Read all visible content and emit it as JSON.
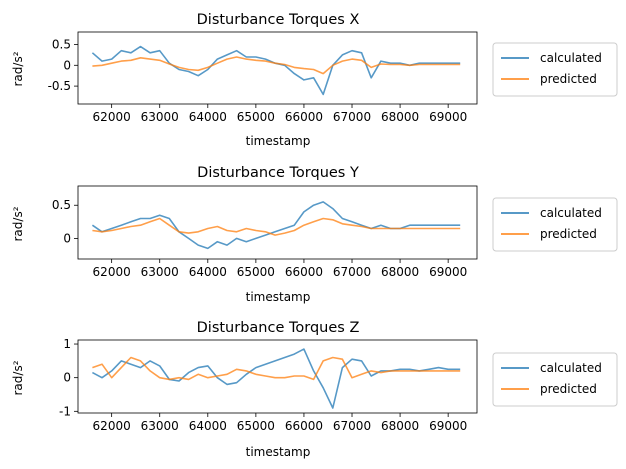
{
  "colors": {
    "calculated": "#1f77b4",
    "predicted": "#ff7f0e"
  },
  "chart_data": [
    {
      "type": "line",
      "title": "Disturbance Torques X",
      "xlabel": "timestamp",
      "ylabel": "rad/s²",
      "xlim": [
        61300,
        69600
      ],
      "ylim": [
        -0.93,
        0.8
      ],
      "x_ticks": [
        62000,
        63000,
        64000,
        65000,
        66000,
        67000,
        68000,
        69000
      ],
      "y_ticks": [
        -0.5,
        0.0,
        0.5
      ],
      "legend": {
        "position": "right",
        "entries": [
          "calculated",
          "predicted"
        ]
      },
      "x": [
        61600,
        61800,
        62000,
        62200,
        62400,
        62600,
        62800,
        63000,
        63200,
        63400,
        63600,
        63800,
        64000,
        64200,
        64400,
        64600,
        64800,
        65000,
        65200,
        65400,
        65600,
        65800,
        66000,
        66200,
        66400,
        66600,
        66800,
        67000,
        67200,
        67400,
        67600,
        67800,
        68000,
        68200,
        68400,
        68600,
        68800,
        69000,
        69250
      ],
      "series": [
        {
          "name": "calculated",
          "values": [
            0.3,
            0.1,
            0.15,
            0.35,
            0.3,
            0.45,
            0.3,
            0.35,
            0.05,
            -0.1,
            -0.15,
            -0.25,
            -0.1,
            0.15,
            0.25,
            0.35,
            0.2,
            0.2,
            0.15,
            0.05,
            0.0,
            -0.2,
            -0.35,
            -0.3,
            -0.7,
            0.0,
            0.25,
            0.35,
            0.3,
            -0.3,
            0.1,
            0.05,
            0.05,
            0.0,
            0.05,
            0.05,
            0.05,
            0.05,
            0.05
          ]
        },
        {
          "name": "predicted",
          "values": [
            -0.02,
            0.0,
            0.05,
            0.1,
            0.12,
            0.18,
            0.15,
            0.12,
            0.03,
            -0.05,
            -0.1,
            -0.12,
            -0.05,
            0.05,
            0.15,
            0.2,
            0.15,
            0.12,
            0.1,
            0.05,
            0.02,
            -0.05,
            -0.08,
            -0.1,
            -0.2,
            0.0,
            0.1,
            0.15,
            0.12,
            -0.05,
            0.03,
            0.02,
            0.02,
            0.0,
            0.02,
            0.02,
            0.02,
            0.02,
            0.02
          ]
        }
      ]
    },
    {
      "type": "line",
      "title": "Disturbance Torques Y",
      "xlabel": "timestamp",
      "ylabel": "rad/s²",
      "xlim": [
        61300,
        69600
      ],
      "ylim": [
        -0.31,
        0.79
      ],
      "x_ticks": [
        62000,
        63000,
        64000,
        65000,
        66000,
        67000,
        68000,
        69000
      ],
      "y_ticks": [
        0.0,
        0.5
      ],
      "legend": {
        "position": "right",
        "entries": [
          "calculated",
          "predicted"
        ]
      },
      "x": [
        61600,
        61800,
        62000,
        62200,
        62400,
        62600,
        62800,
        63000,
        63200,
        63400,
        63600,
        63800,
        64000,
        64200,
        64400,
        64600,
        64800,
        65000,
        65200,
        65400,
        65600,
        65800,
        66000,
        66200,
        66400,
        66600,
        66800,
        67000,
        67200,
        67400,
        67600,
        67800,
        68000,
        68200,
        68400,
        68600,
        68800,
        69000,
        69250
      ],
      "series": [
        {
          "name": "calculated",
          "values": [
            0.2,
            0.1,
            0.15,
            0.2,
            0.25,
            0.3,
            0.3,
            0.35,
            0.3,
            0.1,
            0.0,
            -0.1,
            -0.15,
            -0.05,
            -0.1,
            0.0,
            -0.05,
            0.0,
            0.05,
            0.1,
            0.15,
            0.2,
            0.4,
            0.5,
            0.55,
            0.45,
            0.3,
            0.25,
            0.2,
            0.15,
            0.2,
            0.15,
            0.15,
            0.2,
            0.2,
            0.2,
            0.2,
            0.2,
            0.2
          ]
        },
        {
          "name": "predicted",
          "values": [
            0.12,
            0.1,
            0.12,
            0.15,
            0.18,
            0.2,
            0.25,
            0.3,
            0.2,
            0.1,
            0.08,
            0.1,
            0.15,
            0.18,
            0.12,
            0.1,
            0.15,
            0.12,
            0.1,
            0.05,
            0.08,
            0.12,
            0.2,
            0.25,
            0.3,
            0.28,
            0.22,
            0.2,
            0.18,
            0.15,
            0.15,
            0.15,
            0.15,
            0.15,
            0.15,
            0.15,
            0.15,
            0.15,
            0.15
          ]
        }
      ]
    },
    {
      "type": "line",
      "title": "Disturbance Torques Z",
      "xlabel": "timestamp",
      "ylabel": "rad/s²",
      "xlim": [
        61300,
        69600
      ],
      "ylim": [
        -1.05,
        1.12
      ],
      "x_ticks": [
        62000,
        63000,
        64000,
        65000,
        66000,
        67000,
        68000,
        69000
      ],
      "y_ticks": [
        -1,
        0,
        1
      ],
      "legend": {
        "position": "right",
        "entries": [
          "calculated",
          "predicted"
        ]
      },
      "x": [
        61600,
        61800,
        62000,
        62200,
        62400,
        62600,
        62800,
        63000,
        63200,
        63400,
        63600,
        63800,
        64000,
        64200,
        64400,
        64600,
        64800,
        65000,
        65200,
        65400,
        65600,
        65800,
        66000,
        66200,
        66400,
        66600,
        66800,
        67000,
        67200,
        67400,
        67600,
        67800,
        68000,
        68200,
        68400,
        68600,
        68800,
        69000,
        69250
      ],
      "series": [
        {
          "name": "calculated",
          "values": [
            0.15,
            0.0,
            0.2,
            0.5,
            0.4,
            0.3,
            0.5,
            0.35,
            -0.05,
            -0.1,
            0.15,
            0.3,
            0.35,
            0.0,
            -0.2,
            -0.15,
            0.1,
            0.3,
            0.4,
            0.5,
            0.6,
            0.7,
            0.85,
            0.2,
            -0.3,
            -0.9,
            0.3,
            0.55,
            0.5,
            0.05,
            0.2,
            0.2,
            0.25,
            0.25,
            0.2,
            0.25,
            0.3,
            0.25,
            0.25
          ]
        },
        {
          "name": "predicted",
          "values": [
            0.3,
            0.4,
            0.0,
            0.3,
            0.6,
            0.5,
            0.2,
            0.0,
            -0.05,
            0.0,
            -0.05,
            0.1,
            0.0,
            0.05,
            0.1,
            0.25,
            0.2,
            0.1,
            0.05,
            0.0,
            0.0,
            0.05,
            0.05,
            -0.05,
            0.5,
            0.6,
            0.55,
            0.0,
            0.1,
            0.2,
            0.15,
            0.2,
            0.2,
            0.2,
            0.2,
            0.2,
            0.2,
            0.2,
            0.2
          ]
        }
      ]
    }
  ]
}
